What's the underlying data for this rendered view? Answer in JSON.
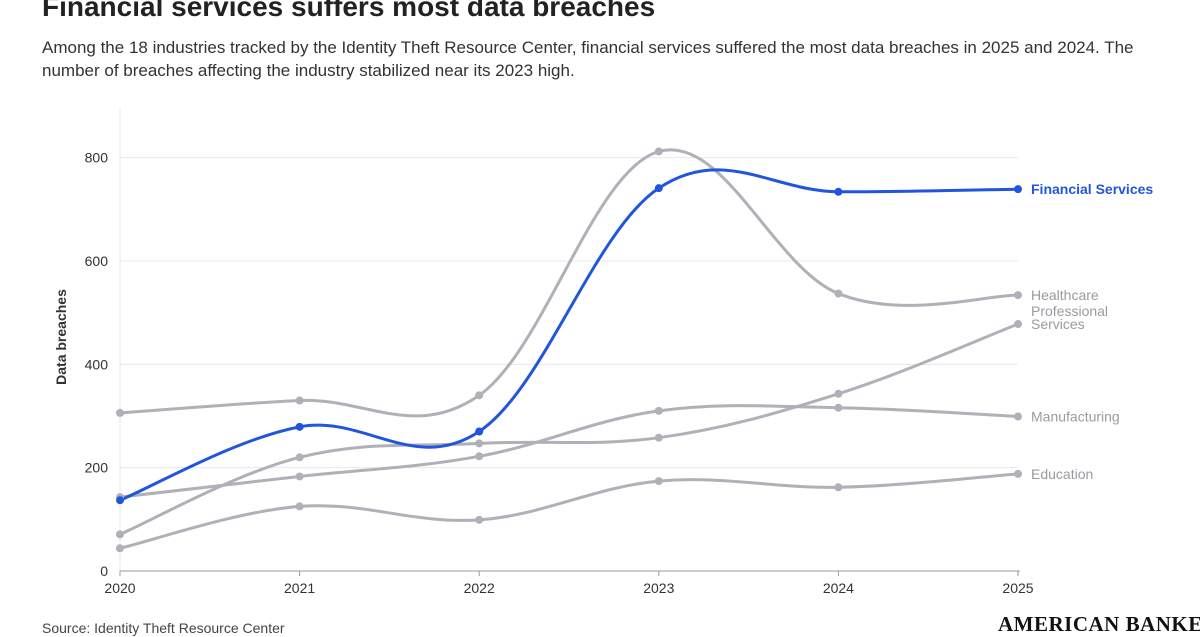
{
  "header": {
    "title": "Financial services suffers most data breaches",
    "subtitle": "Among the 18 industries tracked by the Identity Theft Resource Center, financial services suffered the most data breaches in 2025 and 2024. The number of breaches affecting the industry stabilized near its 2023 high."
  },
  "footer": {
    "source": "Source: Identity Theft Resource Center",
    "logo": "AMERICAN BANKER"
  },
  "colors": {
    "highlight": "#2255dd",
    "muted": "#b0b0b8",
    "grid": "#e8e8e8",
    "axis": "#999999"
  },
  "chart_data": {
    "type": "line",
    "title": "Financial services suffers most data breaches",
    "xlabel": "",
    "ylabel": "Data breaches",
    "x": [
      "2020",
      "2021",
      "2022",
      "2023",
      "2024",
      "2025"
    ],
    "ylim": [
      0,
      900
    ],
    "yticks": [
      0,
      200,
      400,
      600,
      800
    ],
    "grid": true,
    "legend": "direct labels at right end of lines",
    "series": [
      {
        "name": "Healthcare",
        "label_lines": [
          "Healthcare"
        ],
        "highlight": false,
        "values": [
          306,
          330,
          340,
          812,
          537,
          534
        ]
      },
      {
        "name": "Professional Services",
        "label_lines": [
          "Professional",
          "Services"
        ],
        "highlight": false,
        "values": [
          71,
          220,
          247,
          258,
          343,
          478
        ]
      },
      {
        "name": "Manufacturing",
        "label_lines": [
          "Manufacturing"
        ],
        "highlight": false,
        "values": [
          143,
          183,
          222,
          310,
          316,
          299
        ]
      },
      {
        "name": "Education",
        "label_lines": [
          "Education"
        ],
        "highlight": false,
        "values": [
          44,
          125,
          99,
          174,
          162,
          188
        ]
      },
      {
        "name": "Financial Services",
        "label_lines": [
          "Financial Services"
        ],
        "highlight": true,
        "values": [
          137,
          279,
          270,
          741,
          734,
          739
        ]
      }
    ]
  }
}
